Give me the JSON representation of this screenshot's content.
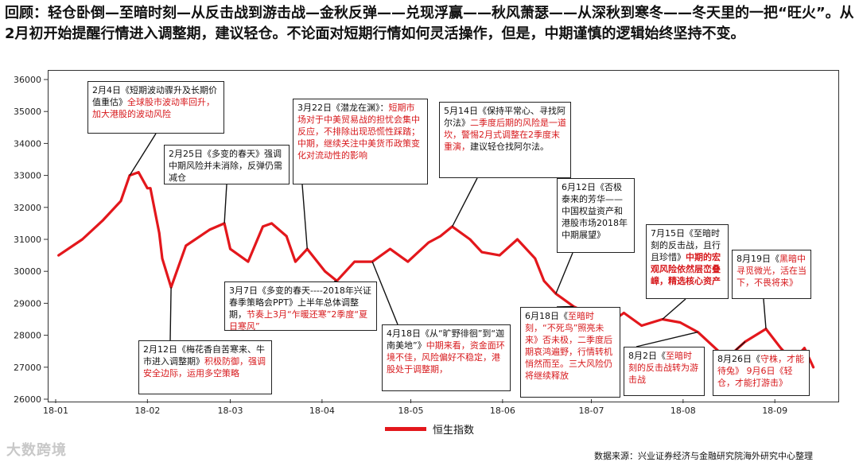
{
  "headline": "回顾：轻仓卧倒—至暗时刻—从反击战到游击战—金秋反弹——兑现浮赢——秋风萧瑟——从深秋到寒冬——冬天里的一把“旺火”。从2月初开始提醒行情进入调整期，建议轻仓。不论面对短期行情如何灵活操作，但是，中期谨慎的逻辑始终坚持不变。",
  "colors": {
    "series": "#e3171c",
    "callout_red": "#d7191c"
  },
  "chart_data": {
    "type": "line",
    "x": [
      "2018-01-02",
      "2018-01-10",
      "2018-01-17",
      "2018-01-23",
      "2018-01-26",
      "2018-01-29",
      "2018-02-01",
      "2018-02-02",
      "2018-02-05",
      "2018-02-06",
      "2018-02-09",
      "2018-02-14",
      "2018-02-22",
      "2018-02-27",
      "2018-03-01",
      "2018-03-07",
      "2018-03-12",
      "2018-03-15",
      "2018-03-20",
      "2018-03-23",
      "2018-03-27",
      "2018-04-02",
      "2018-04-06",
      "2018-04-12",
      "2018-04-18",
      "2018-04-24",
      "2018-04-30",
      "2018-05-07",
      "2018-05-11",
      "2018-05-15",
      "2018-05-21",
      "2018-05-25",
      "2018-05-31",
      "2018-06-06",
      "2018-06-12",
      "2018-06-15",
      "2018-06-19",
      "2018-06-25",
      "2018-07-02",
      "2018-07-06",
      "2018-07-12",
      "2018-07-18",
      "2018-07-25",
      "2018-07-31",
      "2018-08-06",
      "2018-08-13",
      "2018-08-16",
      "2018-08-22",
      "2018-08-29",
      "2018-09-03",
      "2018-09-07",
      "2018-09-11",
      "2018-09-14"
    ],
    "values": [
      30500,
      31000,
      31600,
      32200,
      33000,
      33100,
      32600,
      32600,
      31200,
      30400,
      29500,
      30800,
      31300,
      31500,
      30700,
      30300,
      31400,
      31500,
      31100,
      30300,
      30700,
      30000,
      29700,
      30300,
      30300,
      30700,
      30300,
      30900,
      31100,
      31400,
      31000,
      30600,
      30500,
      31000,
      30400,
      29700,
      29300,
      28900,
      28600,
      28300,
      28700,
      28300,
      28500,
      28400,
      28100,
      27500,
      27300,
      27800,
      28200,
      27600,
      27200,
      27600,
      27000
    ],
    "series": [
      {
        "name": "恒生指数"
      }
    ],
    "x_tick_labels": [
      "18-01",
      "18-02",
      "18-03",
      "18-04",
      "18-05",
      "18-06",
      "18-07",
      "18-08",
      "18-09"
    ],
    "y_ticks": [
      26000,
      27000,
      28000,
      29000,
      30000,
      31000,
      32000,
      33000,
      34000,
      35000,
      36000
    ],
    "ylim": [
      26000,
      36000
    ],
    "grid": false,
    "legend_position": "bottom"
  },
  "callouts": [
    {
      "id": "feb4",
      "black": "2月4日《短期波动骤升及长期价值重估》",
      "red": "全球股市波动率回升，加大港股的波动风险"
    },
    {
      "id": "feb25",
      "black": "2月25日《多变的春天》强调中期风险并未消除，反弹仍需减仓",
      "red": ""
    },
    {
      "id": "mar22",
      "black": "3月22日《潜龙在渊》：",
      "red": "短期市场对于中美贸易战的担忧会集中反应，不排除出现恐慌性踩踏；中期，继续关注中美货币政策变化对流动性的影响"
    },
    {
      "id": "may14",
      "black": "5月14日《保持平常心、寻找阿尔法》",
      "red": "二季度后期的风险是一道坎，警惕2月式调整在2季度末重演，",
      "black2": "建议轻仓找阿尔法。"
    },
    {
      "id": "jun12",
      "black": "6月12日《否极泰来的芳华——中国权益资产和港股市场2018年中期展望》",
      "red": ""
    },
    {
      "id": "jul15",
      "black": "7月15日《至暗时刻的反击战，且行且珍惜》",
      "rb": "中期的宏观风险依然层峦叠嶂，精选核心资产"
    },
    {
      "id": "aug19",
      "black": "8月19日《",
      "red": "黑暗中寻觅微光，活在当下，不畏将来》"
    },
    {
      "id": "mar7",
      "black": "3月7日《多变的春天----2018年兴证春季策略会PPT》上半年总体调整期，",
      "red": "节奏上3月“乍暖还寒”2季度“夏日寒风”"
    },
    {
      "id": "feb12",
      "black": "2月12日《梅花香自苦寒来、牛市进入调整期》",
      "red": "积极防御，强调安全边际，运用多空策略"
    },
    {
      "id": "apr18",
      "black": "4月18日《从“旷野徘徊”到“迦南美地”》",
      "red": "中期来看，资金面环境不佳，风险偏好不稳定，港股处于调整期，"
    },
    {
      "id": "jun18",
      "black": "6月18日《",
      "red": "至暗时刻，“不死鸟”照亮未来》否未极，二季度后期哀鸿遍野，行情转机悄然而至。三大风险仍将继续释放"
    },
    {
      "id": "aug2",
      "black": "8月2日《",
      "red": "至暗时刻的反击战转为游击战"
    },
    {
      "id": "aug26",
      "black": "8月26日《",
      "red": "守株，才能待兔》",
      "red2": "9月6日《轻仓，才能打游击》"
    }
  ],
  "legend_label": "恒生指数",
  "source": "数据来源：兴业证券经济与金融研究院海外研究中心整理",
  "watermark": "大数跨境"
}
